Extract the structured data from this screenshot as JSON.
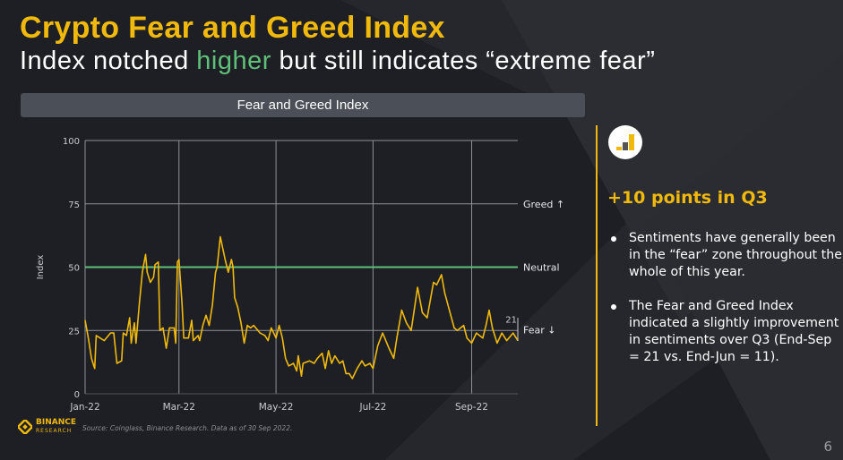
{
  "header": {
    "title": "Crypto Fear and Greed Index",
    "subtitle_pre": "Index notched ",
    "subtitle_highlight": "higher",
    "subtitle_post": " but still indicates “extreme fear”"
  },
  "banner": {
    "label": "Fear and Greed Index"
  },
  "side": {
    "heading": "+10 points in Q3",
    "bullets": [
      "Sentiments have generally been in the “fear” zone throughout the whole of this year.",
      "The Fear and Greed Index indicated a slightly improvement in sentiments over Q3 (End-Sep = 21 vs. End-Jun = 11)."
    ]
  },
  "footer": {
    "source": "Source: Coinglass, Binance Research. Data as of 30 Sep 2022.",
    "logo_text": "BINANCE",
    "logo_sub": "RESEARCH",
    "page": "6"
  },
  "colors": {
    "accent": "#f0b90b",
    "neutral_line": "#5fc07a",
    "line": "#f0b90b"
  },
  "chart_data": {
    "type": "line",
    "title": "Fear and Greed Index",
    "xlabel": "",
    "ylabel": "Index",
    "ylim": [
      0,
      100
    ],
    "xlim_days": [
      0,
      272
    ],
    "yticks": [
      0,
      25,
      50,
      75,
      100
    ],
    "xticks": [
      {
        "day": 0,
        "label": "Jan-22"
      },
      {
        "day": 59,
        "label": "Mar-22"
      },
      {
        "day": 120,
        "label": "May-22"
      },
      {
        "day": 181,
        "label": "Jul-22"
      },
      {
        "day": 243,
        "label": "Sep-22"
      }
    ],
    "reference_lines": [
      {
        "value": 75,
        "label": "Greed ↑"
      },
      {
        "value": 50,
        "label": "Neutral"
      },
      {
        "value": 25,
        "label": "Fear ↓"
      }
    ],
    "end_label": "21",
    "series": [
      {
        "name": "Fear and Greed Index",
        "x_day_of_2022": [
          0,
          2,
          4,
          6,
          7,
          12,
          16,
          18,
          20,
          23,
          24,
          26,
          28,
          29,
          31,
          32,
          34,
          36,
          38,
          39,
          41,
          43,
          44,
          46,
          47,
          49,
          51,
          53,
          56,
          57,
          58,
          59,
          61,
          62,
          65,
          67,
          68,
          71,
          72,
          74,
          76,
          78,
          80,
          82,
          83,
          85,
          87,
          88,
          90,
          92,
          93,
          94,
          96,
          98,
          100,
          102,
          104,
          106,
          110,
          113,
          115,
          117,
          120,
          122,
          124,
          126,
          128,
          131,
          133,
          134,
          136,
          137,
          141,
          144,
          146,
          149,
          151,
          153,
          155,
          157,
          160,
          162,
          164,
          166,
          168,
          171,
          174,
          176,
          179,
          181,
          184,
          187,
          191,
          194,
          196,
          199,
          202,
          205,
          209,
          212,
          215,
          219,
          221,
          224,
          226,
          229,
          232,
          234,
          238,
          240,
          243,
          246,
          250,
          252,
          254,
          256,
          259,
          262,
          265,
          269,
          272
        ],
        "values": [
          29,
          22,
          14,
          10,
          23,
          21,
          24,
          24,
          12,
          13,
          24,
          23,
          30,
          20,
          28,
          20,
          35,
          48,
          55,
          48,
          44,
          46,
          51,
          52,
          25,
          26,
          18,
          26,
          26,
          20,
          52,
          53,
          35,
          22,
          22,
          29,
          21,
          23,
          21,
          27,
          31,
          27,
          35,
          48,
          50,
          62,
          56,
          53,
          48,
          53,
          50,
          38,
          34,
          28,
          20,
          27,
          26,
          27,
          24,
          23,
          21,
          26,
          22,
          27,
          22,
          14,
          11,
          12,
          9,
          15,
          7,
          12,
          13,
          12,
          14,
          16,
          10,
          17,
          12,
          15,
          12,
          13,
          8,
          8,
          6,
          10,
          13,
          11,
          12,
          10,
          19,
          24,
          18,
          14,
          22,
          33,
          28,
          25,
          42,
          32,
          30,
          44,
          43,
          47,
          40,
          33,
          26,
          25,
          27,
          22,
          20,
          24,
          22,
          27,
          33,
          26,
          20,
          24,
          21,
          24,
          21
        ]
      }
    ]
  }
}
